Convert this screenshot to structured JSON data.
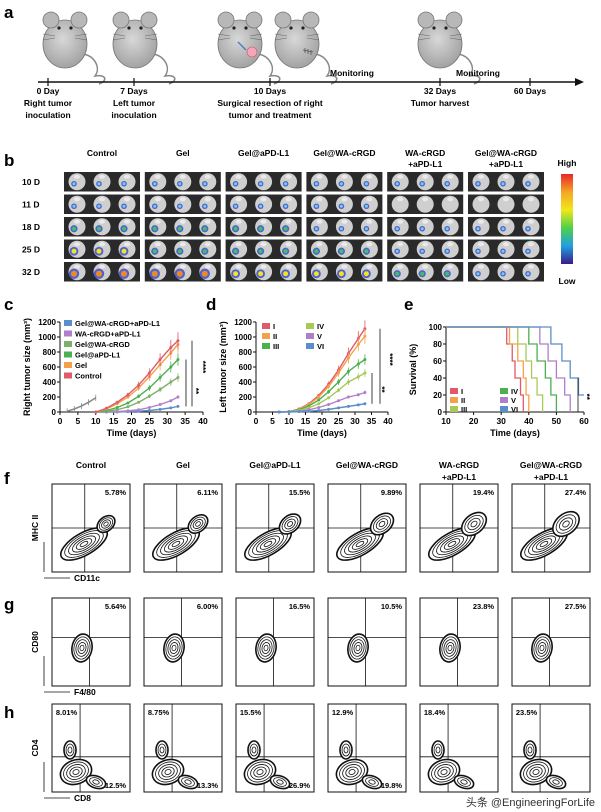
{
  "panel_letters": {
    "a": "a",
    "b": "b",
    "c": "c",
    "d": "d",
    "e": "e",
    "f": "f",
    "g": "g",
    "h": "h"
  },
  "timeline": {
    "monitoring1": "Monitoring",
    "monitoring2": "Monitoring",
    "events": [
      {
        "day": "0 Day",
        "line2": "Right tumor",
        "line3": "inoculation"
      },
      {
        "day": "7 Days",
        "line2": "Left tumor",
        "line3": "inoculation"
      },
      {
        "day": "10 Days",
        "line2": "Surgical resection of right",
        "line3": "tumor and treatment"
      },
      {
        "day": "32 Days",
        "line2": "Tumor harvest",
        "line3": ""
      },
      {
        "day": "60 Days",
        "line2": "",
        "line3": ""
      }
    ]
  },
  "imaging": {
    "groups": [
      {
        "l1": "Control",
        "l2": ""
      },
      {
        "l1": "Gel",
        "l2": ""
      },
      {
        "l1": "Gel@aPD-L1",
        "l2": ""
      },
      {
        "l1": "Gel@WA-cRGD",
        "l2": ""
      },
      {
        "l1": "WA-cRGD",
        "l2": "+aPD-L1"
      },
      {
        "l1": "Gel@WA-cRGD",
        "l2": "+aPD-L1"
      }
    ],
    "days": [
      "10 D",
      "11 D",
      "18 D",
      "25 D",
      "32 D"
    ],
    "intensity": [
      [
        1,
        1,
        1,
        1,
        1,
        1
      ],
      [
        1,
        1,
        1,
        1,
        0,
        0
      ],
      [
        2,
        2,
        2,
        1,
        1,
        1
      ],
      [
        3,
        2,
        2,
        2,
        1,
        1
      ],
      [
        4,
        4,
        3,
        3,
        2,
        1
      ]
    ],
    "scale_high": "High",
    "scale_low": "Low"
  },
  "chart_data": [
    {
      "id": "c",
      "type": "line",
      "title": "",
      "xlabel": "Time (days)",
      "ylabel": "Right tumor size (mm³)",
      "xlim": [
        0,
        40
      ],
      "ylim": [
        0,
        1200
      ],
      "xticks": [
        "0",
        "5",
        "10",
        "15",
        "20",
        "25",
        "30",
        "35",
        "40"
      ],
      "yticks": [
        "0",
        "200",
        "400",
        "600",
        "800",
        "1000",
        "1200"
      ],
      "x_pre": [
        2,
        4,
        6,
        8,
        10
      ],
      "x_post": [
        10,
        13,
        16,
        19,
        22,
        25,
        28,
        31,
        33
      ],
      "significance": [
        "****",
        "**"
      ],
      "series": [
        {
          "name": "Gel@WA-cRGD+aPD-L1",
          "color": "#5b8fc9",
          "pre": [
            10,
            40,
            80,
            130,
            190
          ],
          "post": [
            0,
            0,
            0,
            5,
            10,
            20,
            35,
            55,
            75
          ]
        },
        {
          "name": "WA-cRGD+aPD-L1",
          "color": "#b07fc8",
          "pre": [
            10,
            40,
            80,
            130,
            190
          ],
          "post": [
            0,
            0,
            5,
            15,
            30,
            60,
            100,
            150,
            200
          ]
        },
        {
          "name": "Gel@WA-cRGD",
          "color": "#7fb069",
          "pre": [
            10,
            40,
            80,
            130,
            190
          ],
          "post": [
            0,
            10,
            30,
            70,
            130,
            210,
            300,
            400,
            460
          ]
        },
        {
          "name": "Gel@aPD-L1",
          "color": "#4caf50",
          "pre": [
            10,
            40,
            80,
            130,
            190
          ],
          "post": [
            0,
            20,
            60,
            120,
            210,
            320,
            460,
            600,
            700
          ]
        },
        {
          "name": "Gel",
          "color": "#f5a04a",
          "pre": [
            10,
            40,
            80,
            130,
            190
          ],
          "post": [
            0,
            40,
            110,
            200,
            320,
            470,
            630,
            790,
            900
          ]
        },
        {
          "name": "Control",
          "color": "#e05a6a",
          "pre": [
            10,
            40,
            80,
            130,
            190
          ],
          "post": [
            0,
            50,
            130,
            230,
            360,
            520,
            700,
            860,
            950
          ]
        }
      ]
    },
    {
      "id": "d",
      "type": "line",
      "title": "",
      "xlabel": "Time (days)",
      "ylabel": "Left tumor size (mm³)",
      "xlim": [
        0,
        40
      ],
      "ylim": [
        0,
        1200
      ],
      "xticks": [
        "0",
        "5",
        "10",
        "15",
        "20",
        "25",
        "30",
        "35",
        "40"
      ],
      "yticks": [
        "0",
        "200",
        "400",
        "600",
        "800",
        "1000",
        "1200"
      ],
      "x": [
        7,
        10,
        13,
        16,
        19,
        22,
        25,
        28,
        31,
        33
      ],
      "significance": [
        "****",
        "**"
      ],
      "series": [
        {
          "name": "I",
          "color": "#e05a6a",
          "values": [
            0,
            5,
            40,
            110,
            220,
            370,
            560,
            780,
            980,
            1110
          ]
        },
        {
          "name": "II",
          "color": "#f5a04a",
          "values": [
            0,
            5,
            35,
            100,
            200,
            340,
            520,
            720,
            900,
            1010
          ]
        },
        {
          "name": "III",
          "color": "#4caf50",
          "values": [
            0,
            5,
            30,
            80,
            160,
            270,
            400,
            540,
            640,
            700
          ]
        },
        {
          "name": "IV",
          "color": "#a7c957",
          "values": [
            0,
            5,
            20,
            55,
            110,
            190,
            290,
            400,
            470,
            520
          ]
        },
        {
          "name": "V",
          "color": "#b07fc8",
          "values": [
            0,
            5,
            10,
            30,
            60,
            100,
            150,
            200,
            230,
            260
          ]
        },
        {
          "name": "VI",
          "color": "#5b8fc9",
          "values": [
            0,
            0,
            5,
            10,
            20,
            35,
            55,
            75,
            95,
            110
          ]
        }
      ]
    },
    {
      "id": "e",
      "type": "line",
      "title": "",
      "xlabel": "Time (days)",
      "ylabel": "Survival (%)",
      "xlim": [
        10,
        60
      ],
      "ylim": [
        0,
        100
      ],
      "xticks": [
        "10",
        "20",
        "30",
        "40",
        "50",
        "60"
      ],
      "yticks": [
        "0",
        "20",
        "40",
        "60",
        "80",
        "100"
      ],
      "significance": [
        "**"
      ],
      "series": [
        {
          "name": "I",
          "color": "#e05a6a",
          "steps": [
            [
              10,
              100
            ],
            [
              32,
              100
            ],
            [
              32,
              80
            ],
            [
              34,
              80
            ],
            [
              34,
              60
            ],
            [
              35,
              60
            ],
            [
              35,
              40
            ],
            [
              37,
              40
            ],
            [
              37,
              20
            ],
            [
              38,
              20
            ],
            [
              38,
              0
            ]
          ]
        },
        {
          "name": "II",
          "color": "#f5a04a",
          "steps": [
            [
              10,
              100
            ],
            [
              33,
              100
            ],
            [
              33,
              80
            ],
            [
              36,
              80
            ],
            [
              36,
              60
            ],
            [
              38,
              60
            ],
            [
              38,
              40
            ],
            [
              39,
              40
            ],
            [
              39,
              20
            ],
            [
              40,
              20
            ],
            [
              40,
              0
            ]
          ]
        },
        {
          "name": "III",
          "color": "#a7c957",
          "steps": [
            [
              10,
              100
            ],
            [
              36,
              100
            ],
            [
              36,
              80
            ],
            [
              39,
              80
            ],
            [
              39,
              60
            ],
            [
              41,
              60
            ],
            [
              41,
              40
            ],
            [
              43,
              40
            ],
            [
              43,
              20
            ],
            [
              45,
              20
            ],
            [
              45,
              0
            ]
          ]
        },
        {
          "name": "IV",
          "color": "#4caf50",
          "steps": [
            [
              10,
              100
            ],
            [
              40,
              100
            ],
            [
              40,
              80
            ],
            [
              43,
              80
            ],
            [
              43,
              60
            ],
            [
              46,
              60
            ],
            [
              46,
              40
            ],
            [
              48,
              40
            ],
            [
              48,
              20
            ],
            [
              50,
              20
            ],
            [
              50,
              0
            ]
          ]
        },
        {
          "name": "V",
          "color": "#b07fc8",
          "steps": [
            [
              10,
              100
            ],
            [
              44,
              100
            ],
            [
              44,
              80
            ],
            [
              47,
              80
            ],
            [
              47,
              60
            ],
            [
              50,
              60
            ],
            [
              50,
              40
            ],
            [
              53,
              40
            ],
            [
              53,
              20
            ],
            [
              55,
              20
            ],
            [
              55,
              0
            ]
          ]
        },
        {
          "name": "VI",
          "color": "#5b8fc9",
          "steps": [
            [
              10,
              100
            ],
            [
              48,
              100
            ],
            [
              48,
              80
            ],
            [
              52,
              80
            ],
            [
              52,
              60
            ],
            [
              55,
              60
            ],
            [
              55,
              40
            ],
            [
              58,
              40
            ],
            [
              58,
              20
            ],
            [
              60,
              20
            ]
          ]
        }
      ]
    }
  ],
  "flow": {
    "groups": [
      {
        "l1": "Control",
        "l2": ""
      },
      {
        "l1": "Gel",
        "l2": ""
      },
      {
        "l1": "Gel@aPD-L1",
        "l2": ""
      },
      {
        "l1": "Gel@WA-cRGD",
        "l2": ""
      },
      {
        "l1": "WA-cRGD",
        "l2": "+aPD-L1"
      },
      {
        "l1": "Gel@WA-cRGD",
        "l2": "+aPD-L1"
      }
    ],
    "f": {
      "yaxis": "MHC II",
      "xaxis": "CD11c",
      "pct": [
        "5.78%",
        "6.11%",
        "15.5%",
        "9.89%",
        "19.4%",
        "27.4%"
      ]
    },
    "g": {
      "yaxis": "CD80",
      "xaxis": "F4/80",
      "pct": [
        "5.64%",
        "6.00%",
        "16.5%",
        "10.5%",
        "23.8%",
        "27.5%"
      ]
    },
    "h": {
      "yaxis": "CD4",
      "xaxis": "CD8",
      "pct_ul": [
        "8.01%",
        "8.75%",
        "15.5%",
        "12.9%",
        "18.4%",
        "23.5%"
      ],
      "pct_lr": [
        "12.5%",
        "13.3%",
        "26.9%",
        "19.8%",
        "",
        ""
      ]
    }
  },
  "watermark": "头条 @EngineeringForLife"
}
